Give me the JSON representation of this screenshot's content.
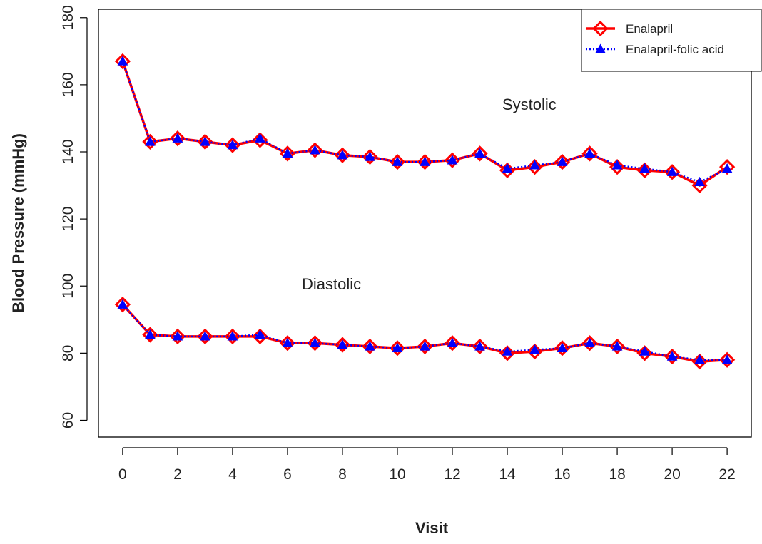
{
  "chart_data": {
    "type": "line",
    "title": "",
    "xlabel": "Visit",
    "ylabel": "Blood Pressure (mmHg)",
    "xlim": [
      -0.88,
      22.88
    ],
    "ylim": [
      55,
      182.5
    ],
    "x_ticks": [
      0,
      2,
      4,
      6,
      8,
      10,
      12,
      14,
      16,
      18,
      20,
      22
    ],
    "y_ticks": [
      60,
      80,
      100,
      120,
      140,
      160,
      180
    ],
    "grid": false,
    "legend_position": "top-right",
    "annotations": [
      {
        "text": "Systolic",
        "x": 14.8,
        "y": 152.5
      },
      {
        "text": "Diastolic",
        "x": 7.6,
        "y": 99
      }
    ],
    "x": [
      0,
      1,
      2,
      3,
      4,
      5,
      6,
      7,
      8,
      9,
      10,
      11,
      12,
      13,
      14,
      15,
      16,
      17,
      18,
      19,
      20,
      21,
      22
    ],
    "series": [
      {
        "name": "Enalapril",
        "color": "#ff0000",
        "line_style": "solid",
        "marker": "diamond-open",
        "groups": {
          "Systolic": [
            167,
            143,
            144,
            143,
            142,
            143.5,
            139.5,
            140.5,
            139,
            138.5,
            137,
            137,
            137.5,
            139.5,
            134.5,
            135.5,
            137,
            139.5,
            135.5,
            134.5,
            134,
            130,
            135.5
          ],
          "Diastolic": [
            94.5,
            85.5,
            85,
            85,
            85,
            85,
            83,
            83,
            82.5,
            82,
            81.5,
            82,
            83,
            82,
            80,
            80.5,
            81.5,
            83,
            82,
            80,
            79,
            77.5,
            78
          ]
        }
      },
      {
        "name": "Enalapril-folic acid",
        "color": "#0000ff",
        "line_style": "dotted",
        "marker": "triangle-filled",
        "groups": {
          "Systolic": [
            167,
            143,
            144,
            143,
            142,
            144,
            139.5,
            140.5,
            139,
            138.5,
            137,
            137,
            137.5,
            139.5,
            135,
            136,
            137,
            139.5,
            136,
            135,
            134,
            131,
            135
          ],
          "Diastolic": [
            94.5,
            85.5,
            85,
            85,
            85,
            85.5,
            83,
            83,
            82.5,
            82,
            81.5,
            82,
            83,
            82,
            80.5,
            81,
            81.5,
            83,
            82,
            80.5,
            79,
            78,
            78
          ]
        }
      }
    ]
  }
}
